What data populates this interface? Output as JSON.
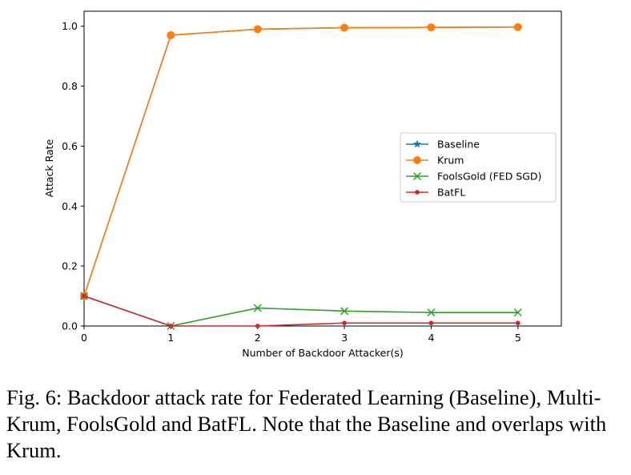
{
  "chart_data": {
    "type": "line",
    "title": "",
    "xlabel": "Number of Backdoor Attacker(s)",
    "ylabel": "Attack Rate",
    "xlim": [
      0,
      5.5
    ],
    "ylim": [
      0,
      1.05
    ],
    "xticks": [
      0,
      1,
      2,
      3,
      4,
      5
    ],
    "xtick_labels": [
      "0",
      "1",
      "2",
      "3",
      "4",
      "5"
    ],
    "yticks": [
      0,
      0.2,
      0.4,
      0.6,
      0.8,
      1.0
    ],
    "ytick_labels": [
      "0.0",
      "0.2",
      "0.4",
      "0.6",
      "0.8",
      "1.0"
    ],
    "grid": false,
    "legend_position": "center-right",
    "x": [
      0,
      1,
      2,
      3,
      4,
      5
    ],
    "series": [
      {
        "name": "Baseline",
        "values": [
          0.1,
          0.97,
          0.99,
          0.995,
          0.996,
          0.997
        ],
        "color": "#1f77b4",
        "marker": "star"
      },
      {
        "name": "Krum",
        "values": [
          0.1,
          0.97,
          0.99,
          0.995,
          0.996,
          0.997
        ],
        "color": "#ff7f0e",
        "marker": "circle"
      },
      {
        "name": "FoolsGold (FED SGD)",
        "values": [
          0.1,
          0.0,
          0.06,
          0.05,
          0.045,
          0.045
        ],
        "color": "#2ca02c",
        "marker": "x"
      },
      {
        "name": "BatFL",
        "values": [
          0.1,
          0.0,
          0.0,
          0.01,
          0.01,
          0.01
        ],
        "color": "#d62728",
        "marker": "dot"
      }
    ]
  },
  "caption": "Fig. 6: Backdoor attack rate for Federated Learning (Baseline), Multi-Krum, FoolsGold and BatFL. Note that the Baseline and overlaps with Krum."
}
